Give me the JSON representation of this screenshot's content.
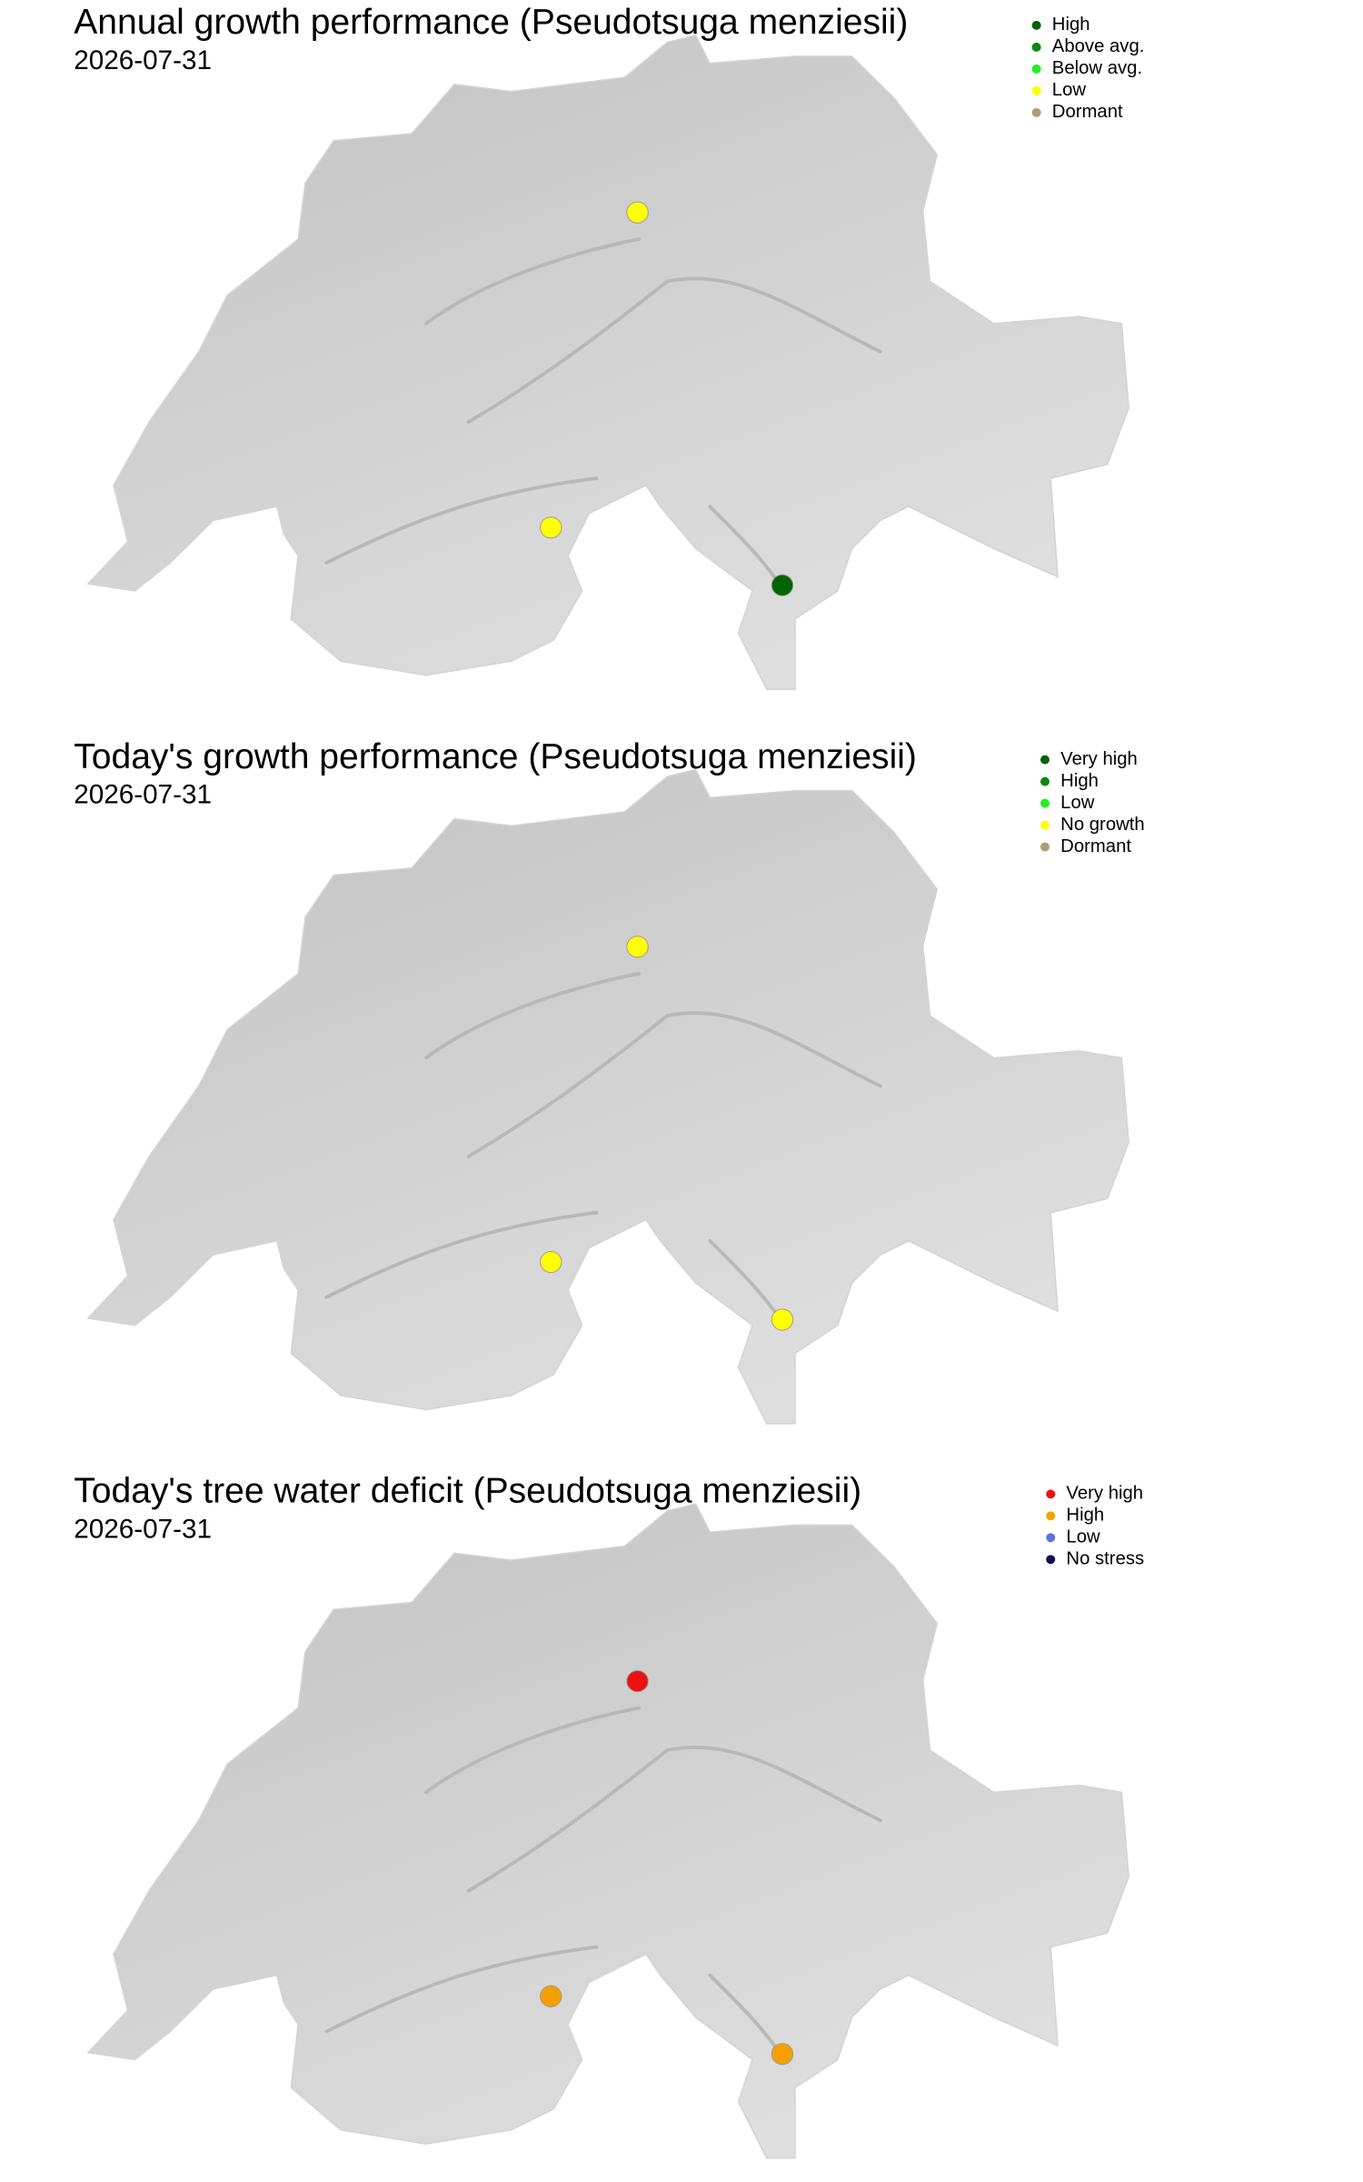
{
  "panels": [
    {
      "title": "Annual growth performance (Pseudotsuga menziesii)",
      "date": "2026-07-31",
      "legend": [
        {
          "label": "High",
          "color": "#006400"
        },
        {
          "label": "Above avg.",
          "color": "#0b8a0b"
        },
        {
          "label": "Below avg.",
          "color": "#22ee22"
        },
        {
          "label": "Low",
          "color": "#ffff00"
        },
        {
          "label": "Dormant",
          "color": "#b39b72"
        }
      ],
      "points": [
        "Low",
        "Low",
        "High"
      ]
    },
    {
      "title": "Today's growth performance (Pseudotsuga menziesii)",
      "date": "2026-07-31",
      "legend": [
        {
          "label": "Very high",
          "color": "#006400"
        },
        {
          "label": "High",
          "color": "#0b8a0b"
        },
        {
          "label": "Low",
          "color": "#22ee22"
        },
        {
          "label": "No growth",
          "color": "#ffff00"
        },
        {
          "label": "Dormant",
          "color": "#b39b72"
        }
      ],
      "points": [
        "No growth",
        "No growth",
        "No growth"
      ]
    },
    {
      "title": "Today's tree water deficit (Pseudotsuga menziesii)",
      "date": "2026-07-31",
      "legend": [
        {
          "label": "Very high",
          "color": "#ee1111"
        },
        {
          "label": "High",
          "color": "#f5a000"
        },
        {
          "label": "Low",
          "color": "#5577dd"
        },
        {
          "label": "No stress",
          "color": "#0a1050"
        }
      ],
      "points": [
        "Very high",
        "High",
        "High"
      ]
    }
  ]
}
